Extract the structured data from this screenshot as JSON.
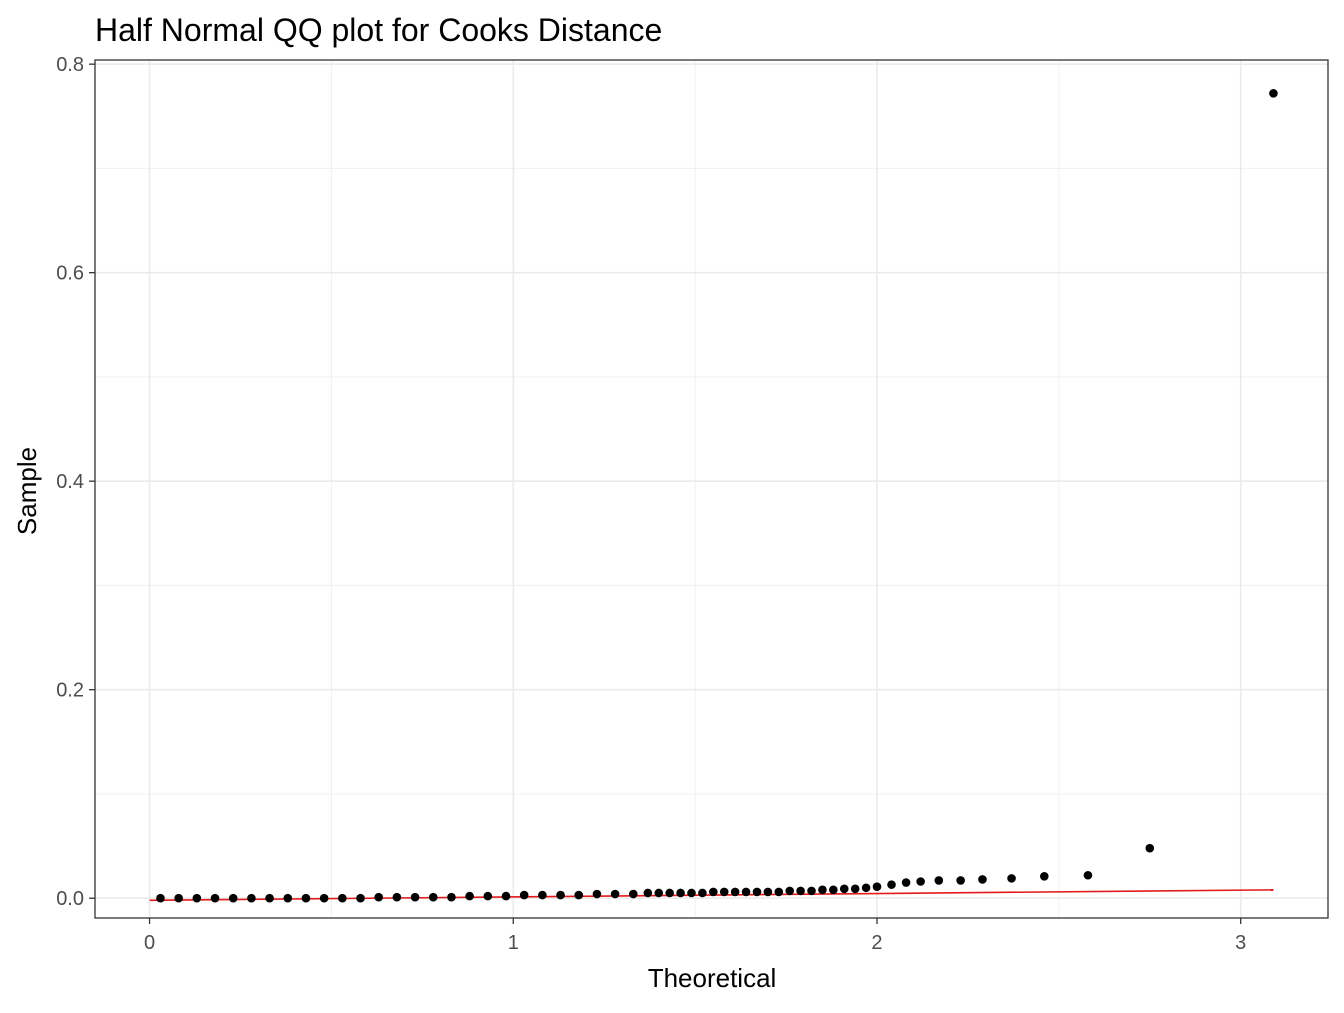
{
  "chart_data": {
    "type": "scatter",
    "title": "Half Normal QQ plot for Cooks Distance",
    "xlabel": "Theoretical",
    "ylabel": "Sample",
    "xlim": [
      -0.15,
      3.24
    ],
    "ylim": [
      -0.019,
      0.804
    ],
    "x_ticks": [
      0,
      1,
      2,
      3
    ],
    "x_tick_labels": [
      "0",
      "1",
      "2",
      "3"
    ],
    "y_ticks": [
      0.0,
      0.2,
      0.4,
      0.6,
      0.8
    ],
    "y_tick_labels": [
      "0.0",
      "0.2",
      "0.4",
      "0.6",
      "0.8"
    ],
    "x_minor_ticks": [
      0.5,
      1.5,
      2.5
    ],
    "y_minor_ticks": [
      0.1,
      0.3,
      0.5,
      0.7
    ],
    "grid": true,
    "legend": "none",
    "point_color": "#000000",
    "series": [
      {
        "x": [
          0.03,
          0.08,
          0.13,
          0.18,
          0.23,
          0.28,
          0.33,
          0.38,
          0.43,
          0.48,
          0.53,
          0.58,
          0.63,
          0.68,
          0.73,
          0.78,
          0.83,
          0.88,
          0.93,
          0.98,
          1.03,
          1.08,
          1.13,
          1.18,
          1.23,
          1.28,
          1.33,
          1.37,
          1.4,
          1.43,
          1.46,
          1.49,
          1.52,
          1.55,
          1.58,
          1.61,
          1.64,
          1.67,
          1.7,
          1.73,
          1.76,
          1.79,
          1.82,
          1.85,
          1.88,
          1.91,
          1.94,
          1.97,
          2.0,
          2.04,
          2.08,
          2.12,
          2.17,
          2.23,
          2.29,
          2.37,
          2.46,
          2.58,
          2.75,
          3.09
        ],
        "y": [
          0.0,
          0.0,
          0.0,
          0.0,
          0.0,
          0.0,
          0.0,
          0.0,
          0.0,
          0.0,
          0.0,
          0.0,
          0.001,
          0.001,
          0.001,
          0.001,
          0.001,
          0.002,
          0.002,
          0.002,
          0.003,
          0.003,
          0.003,
          0.003,
          0.004,
          0.004,
          0.004,
          0.005,
          0.005,
          0.005,
          0.005,
          0.005,
          0.005,
          0.006,
          0.006,
          0.006,
          0.006,
          0.006,
          0.006,
          0.006,
          0.007,
          0.007,
          0.007,
          0.008,
          0.008,
          0.009,
          0.009,
          0.01,
          0.011,
          0.013,
          0.015,
          0.016,
          0.017,
          0.017,
          0.018,
          0.019,
          0.021,
          0.022,
          0.048,
          0.772
        ]
      },
      {
        "type": "line",
        "color": "#e31a1c",
        "x": [
          0.0,
          3.09
        ],
        "y": [
          -0.002,
          0.008
        ]
      }
    ]
  }
}
